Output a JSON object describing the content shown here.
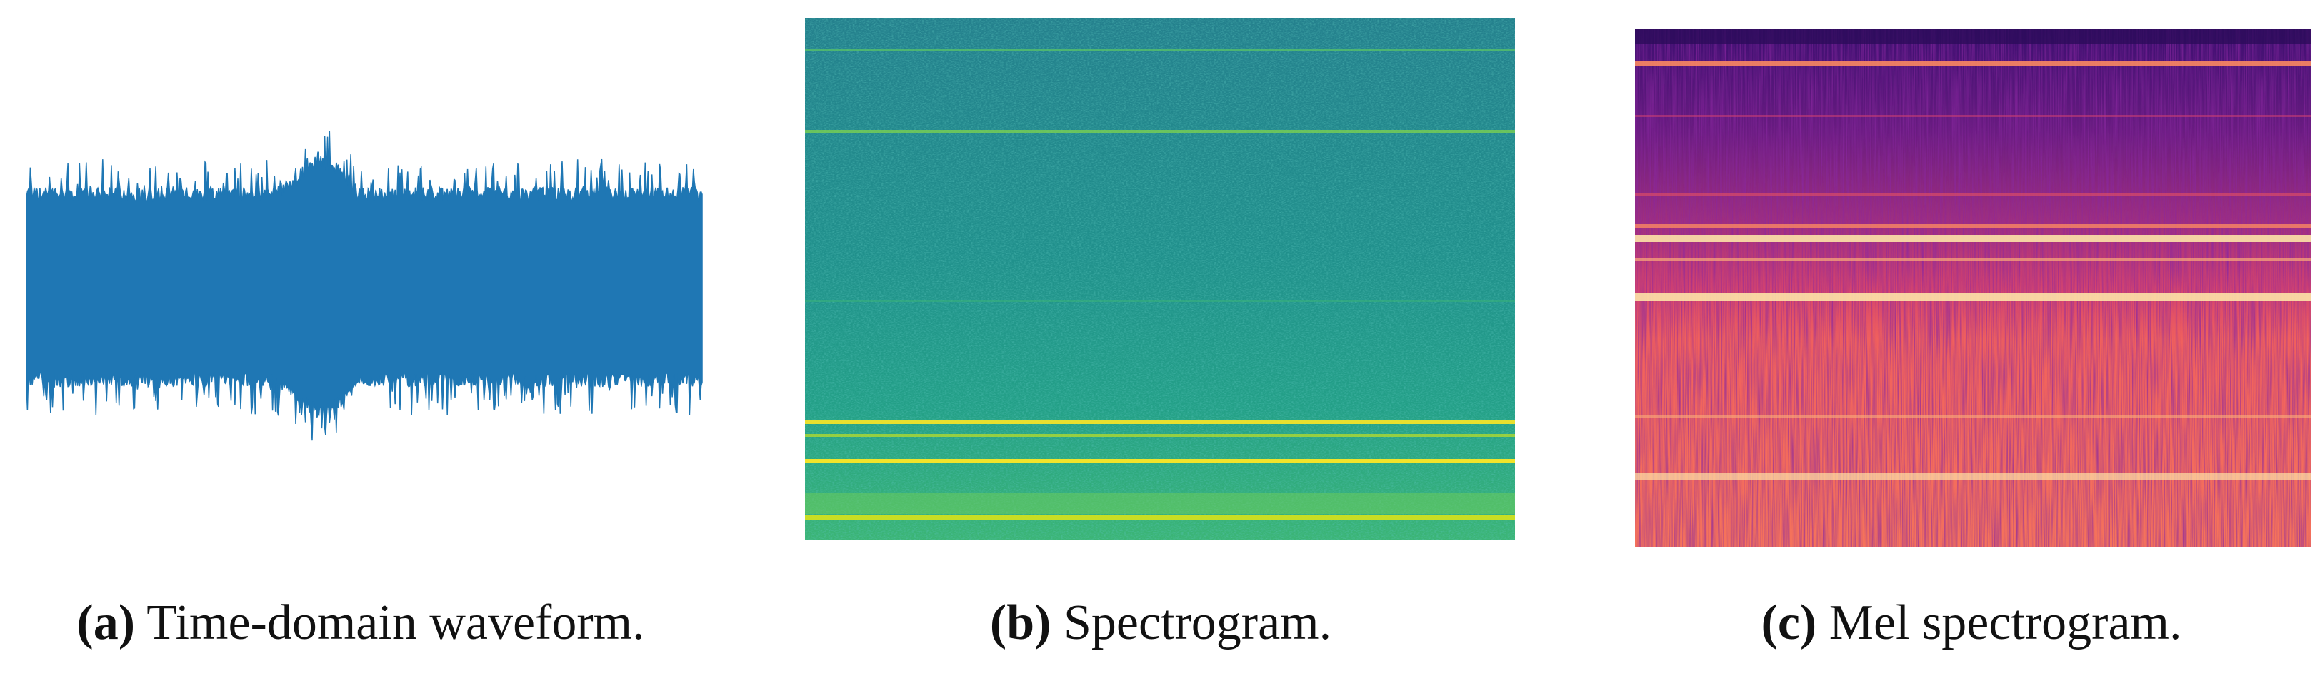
{
  "figure": {
    "panels": [
      {
        "label": "(a)",
        "caption": "Time-domain waveform."
      },
      {
        "label": "(b)",
        "caption": "Spectrogram."
      },
      {
        "label": "(c)",
        "caption": "Mel spectrogram."
      }
    ]
  }
}
